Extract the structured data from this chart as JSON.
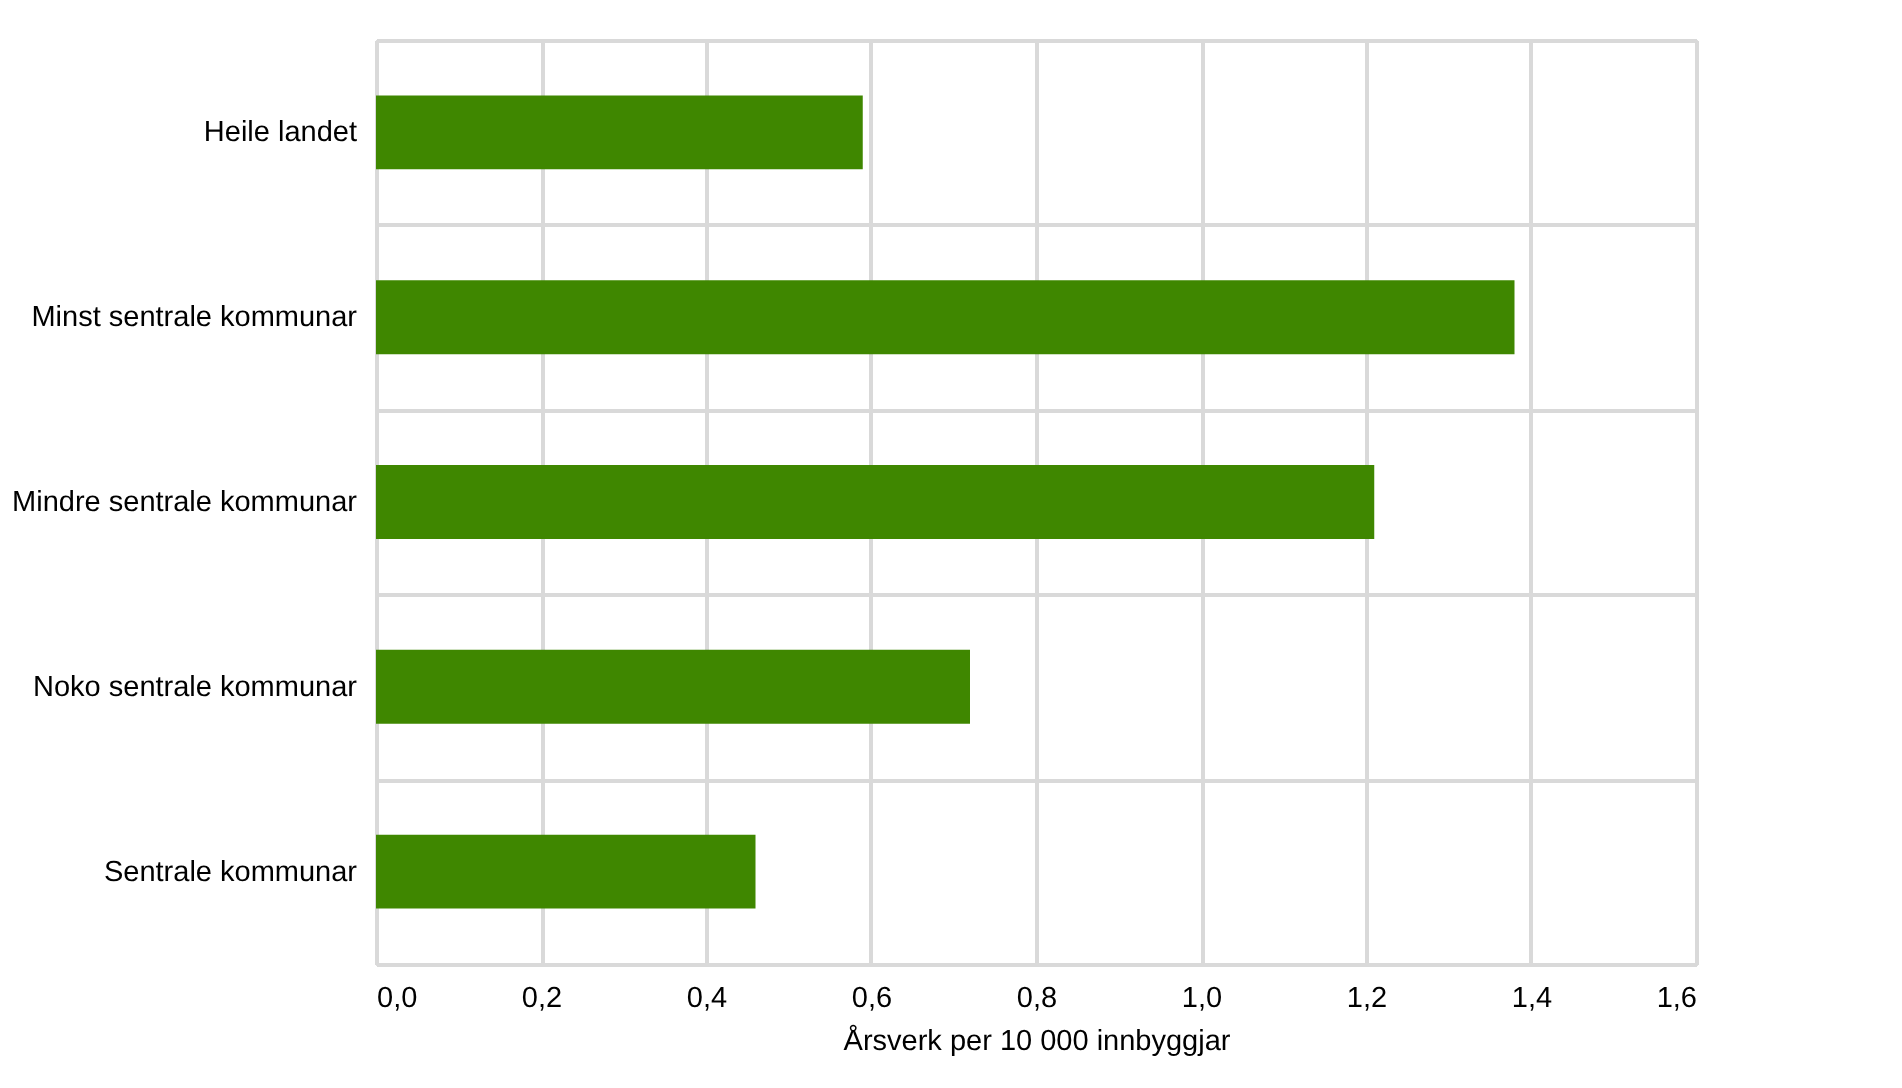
{
  "chart_data": {
    "type": "bar",
    "orientation": "horizontal",
    "xlabel": "Årsverk per 10 000 innbyggjar",
    "categories": [
      "Heile landet",
      "Minst sentrale kommunar",
      "Mindre sentrale kommunar",
      "Noko sentrale kommunar",
      "Sentrale kommunar"
    ],
    "values": [
      0.59,
      1.38,
      1.21,
      0.72,
      0.46
    ],
    "color": "#3f8700",
    "xlim": [
      0,
      1.6
    ],
    "xticks": [
      {
        "value": 0,
        "label": "0,0"
      },
      {
        "value": 0.2,
        "label": "0,2"
      },
      {
        "value": 0.4,
        "label": "0,4"
      },
      {
        "value": 0.6,
        "label": "0,6"
      },
      {
        "value": 0.8,
        "label": "0,8"
      },
      {
        "value": 1.0,
        "label": "1,0"
      },
      {
        "value": 1.2,
        "label": "1,2"
      },
      {
        "value": 1.4,
        "label": "1,4"
      },
      {
        "value": 1.6,
        "label": "1,6"
      }
    ],
    "grid": true
  }
}
